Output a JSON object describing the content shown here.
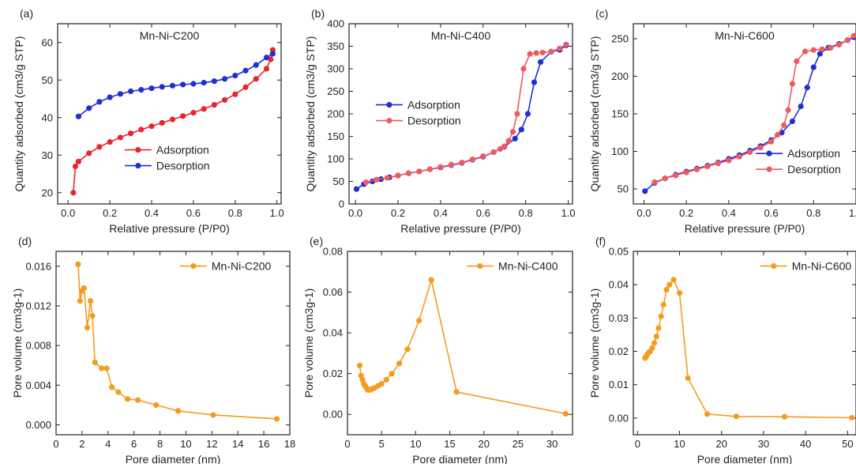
{
  "chart_data": [
    {
      "id": "a",
      "panel_label": "(a)",
      "type": "line",
      "title": "Mn-Ni-C200",
      "xlabel": "Relative pressure (P/P0)",
      "ylabel": "Quantity adsorbed (cm3/g STP)",
      "xlim": [
        -0.05,
        1.02
      ],
      "ylim": [
        17,
        65
      ],
      "xticks": [
        0.0,
        0.2,
        0.4,
        0.6,
        0.8,
        1.0
      ],
      "xtick_labels": [
        "0.0",
        "0.2",
        "0.4",
        "0.6",
        "0.8",
        "1.0"
      ],
      "yticks": [
        20,
        30,
        40,
        50,
        60
      ],
      "ytick_labels": [
        "20",
        "30",
        "40",
        "50",
        "60"
      ],
      "legend": "center-right",
      "series": [
        {
          "name": "Adsorption",
          "color": "#e8262b",
          "x": [
            0.025,
            0.035,
            0.05,
            0.1,
            0.15,
            0.2,
            0.25,
            0.3,
            0.35,
            0.4,
            0.45,
            0.5,
            0.55,
            0.6,
            0.65,
            0.7,
            0.75,
            0.8,
            0.85,
            0.9,
            0.95,
            0.97,
            0.98
          ],
          "y": [
            20,
            27,
            28.3,
            30.5,
            32.2,
            33.5,
            34.7,
            35.8,
            36.8,
            37.7,
            38.6,
            39.5,
            40.4,
            41.3,
            42.3,
            43.4,
            44.7,
            46.2,
            48.1,
            50.3,
            53,
            55.5,
            58
          ]
        },
        {
          "name": "Desorption",
          "color": "#1f2fd4",
          "x": [
            0.98,
            0.95,
            0.9,
            0.85,
            0.8,
            0.75,
            0.7,
            0.65,
            0.6,
            0.55,
            0.5,
            0.45,
            0.4,
            0.35,
            0.3,
            0.25,
            0.2,
            0.15,
            0.1,
            0.05
          ],
          "y": [
            57,
            56,
            54,
            52.5,
            51.2,
            50.3,
            49.7,
            49.3,
            49,
            48.8,
            48.5,
            48.2,
            47.8,
            47.4,
            47,
            46.3,
            45.4,
            44.2,
            42.5,
            40.3
          ]
        }
      ]
    },
    {
      "id": "b",
      "panel_label": "(b)",
      "type": "line",
      "title": "Mn-Ni-C400",
      "xlabel": "Relative pressure (P/P0)",
      "ylabel": "Quantity adsorbed (cm3/g STP)",
      "xlim": [
        -0.03,
        1.02
      ],
      "ylim": [
        0,
        400
      ],
      "xticks": [
        0.0,
        0.2,
        0.4,
        0.6,
        0.8,
        1.0
      ],
      "xtick_labels": [
        "0.0",
        "0.2",
        "0.4",
        "0.6",
        "0.8",
        "1.0"
      ],
      "yticks": [
        0,
        50,
        100,
        150,
        200,
        250,
        300,
        350,
        400
      ],
      "ytick_labels": [
        "0",
        "50",
        "100",
        "150",
        "200",
        "250",
        "300",
        "350",
        "400"
      ],
      "legend": "center-left",
      "series": [
        {
          "name": "Adsorption",
          "color": "#1f2fd4",
          "x": [
            0.005,
            0.04,
            0.08,
            0.12,
            0.16,
            0.2,
            0.25,
            0.3,
            0.35,
            0.4,
            0.45,
            0.5,
            0.55,
            0.6,
            0.65,
            0.7,
            0.75,
            0.78,
            0.81,
            0.84,
            0.87,
            0.92,
            0.96,
            0.99
          ],
          "y": [
            33,
            44,
            50,
            55,
            59,
            63,
            68,
            72,
            77,
            81,
            86,
            91,
            98,
            105,
            115,
            127,
            145,
            165,
            200,
            270,
            315,
            338,
            342,
            352
          ]
        },
        {
          "name": "Desorption",
          "color": "#ef5a5f",
          "x": [
            0.99,
            0.96,
            0.92,
            0.88,
            0.85,
            0.82,
            0.79,
            0.76,
            0.74,
            0.72,
            0.7,
            0.68,
            0.65,
            0.6,
            0.55,
            0.5,
            0.45,
            0.4,
            0.35,
            0.3,
            0.25,
            0.2,
            0.15,
            0.1,
            0.05
          ],
          "y": [
            354,
            345,
            338,
            336,
            335,
            333,
            300,
            200,
            160,
            140,
            128,
            122,
            115,
            106,
            99,
            92,
            87,
            82,
            77,
            72,
            68,
            63,
            58,
            54,
            48
          ]
        }
      ]
    },
    {
      "id": "c",
      "panel_label": "(c)",
      "type": "line",
      "title": "Mn-Ni-C600",
      "xlabel": "Relative pressure (P/P0)",
      "ylabel": "Quantity adsorbed (cm3/g STP)",
      "xlim": [
        -0.05,
        1.0
      ],
      "ylim": [
        30,
        270
      ],
      "xticks": [
        0.0,
        0.2,
        0.4,
        0.6,
        0.8,
        1.0
      ],
      "xtick_labels": [
        "0.0",
        "0.2",
        "0.4",
        "0.6",
        "0.8",
        "1.0"
      ],
      "yticks": [
        50,
        100,
        150,
        200,
        250
      ],
      "ytick_labels": [
        "50",
        "100",
        "150",
        "200",
        "250"
      ],
      "legend": "center-right",
      "series": [
        {
          "name": "Adsorption",
          "color": "#1f2fd4",
          "x": [
            0.005,
            0.05,
            0.1,
            0.15,
            0.2,
            0.25,
            0.3,
            0.35,
            0.4,
            0.45,
            0.5,
            0.55,
            0.6,
            0.65,
            0.7,
            0.74,
            0.77,
            0.8,
            0.83,
            0.87,
            0.92,
            0.96,
            0.99
          ],
          "y": [
            47,
            58,
            64,
            69,
            73,
            77,
            81,
            85,
            90,
            95,
            101,
            107,
            115,
            125,
            140,
            160,
            185,
            212,
            230,
            238,
            243,
            248,
            252
          ]
        },
        {
          "name": "Desorption",
          "color": "#ef5a5f",
          "x": [
            0.99,
            0.96,
            0.92,
            0.88,
            0.84,
            0.8,
            0.76,
            0.72,
            0.7,
            0.68,
            0.66,
            0.63,
            0.6,
            0.55,
            0.5,
            0.45,
            0.4,
            0.35,
            0.3,
            0.25,
            0.2,
            0.15,
            0.1,
            0.05
          ],
          "y": [
            254,
            248,
            242,
            238,
            236,
            235,
            233,
            220,
            190,
            155,
            135,
            122,
            113,
            105,
            99,
            93,
            88,
            84,
            80,
            76,
            72,
            68,
            64,
            59
          ]
        }
      ]
    },
    {
      "id": "d",
      "panel_label": "(d)",
      "type": "line",
      "title": "",
      "xlabel": "Pore diameter (nm)",
      "ylabel": "Pore volume (cm3g-1)",
      "xlim": [
        0,
        18
      ],
      "ylim": [
        -0.001,
        0.0175
      ],
      "xticks": [
        0,
        2,
        4,
        6,
        8,
        10,
        12,
        14,
        16,
        18
      ],
      "xtick_labels": [
        "0",
        "2",
        "4",
        "6",
        "8",
        "10",
        "12",
        "14",
        "16",
        "18"
      ],
      "yticks": [
        0.0,
        0.004,
        0.008,
        0.012,
        0.016
      ],
      "ytick_labels": [
        "0.000",
        "0.004",
        "0.008",
        "0.012",
        "0.016"
      ],
      "legend": "top-right",
      "series": [
        {
          "name": "Mn-Ni-C200",
          "color": "#f39c1f",
          "x": [
            1.7,
            1.85,
            2.0,
            2.15,
            2.4,
            2.65,
            2.8,
            3.0,
            3.5,
            3.9,
            4.3,
            4.8,
            5.5,
            6.3,
            7.7,
            9.4,
            12.1,
            17.0
          ],
          "y": [
            0.0162,
            0.0125,
            0.0135,
            0.0138,
            0.0098,
            0.0125,
            0.011,
            0.0063,
            0.0057,
            0.0057,
            0.0038,
            0.0033,
            0.0026,
            0.0025,
            0.002,
            0.0014,
            0.001,
            0.0006
          ]
        }
      ]
    },
    {
      "id": "e",
      "panel_label": "(e)",
      "type": "line",
      "title": "",
      "xlabel": "Pore diameter (nm)",
      "ylabel": "Pore volume (cm3g-1)",
      "xlim": [
        0,
        33
      ],
      "ylim": [
        -0.01,
        0.08
      ],
      "xticks": [
        0,
        5,
        10,
        15,
        20,
        25,
        30
      ],
      "xtick_labels": [
        "0",
        "5",
        "10",
        "15",
        "20",
        "25",
        "30"
      ],
      "yticks": [
        0.0,
        0.02,
        0.04,
        0.06,
        0.08
      ],
      "ytick_labels": [
        "0.00",
        "0.02",
        "0.04",
        "0.06",
        "0.08"
      ],
      "legend": "top-right",
      "series": [
        {
          "name": "Mn-Ni-C400",
          "color": "#f39c1f",
          "x": [
            1.8,
            2.0,
            2.2,
            2.4,
            2.6,
            2.8,
            3.0,
            3.3,
            3.6,
            4.0,
            4.5,
            5.0,
            5.7,
            6.5,
            7.6,
            8.8,
            10.5,
            12.3,
            16.0,
            32.0
          ],
          "y": [
            0.024,
            0.019,
            0.017,
            0.015,
            0.014,
            0.013,
            0.012,
            0.012,
            0.0125,
            0.013,
            0.014,
            0.015,
            0.017,
            0.02,
            0.025,
            0.032,
            0.046,
            0.066,
            0.011,
            0.0003
          ]
        }
      ]
    },
    {
      "id": "f",
      "panel_label": "(f)",
      "type": "line",
      "title": "",
      "xlabel": "Pore diameter (nm)",
      "ylabel": "Pore volume (cm3g-1)",
      "xlim": [
        -1,
        52
      ],
      "ylim": [
        -0.005,
        0.05
      ],
      "xticks": [
        0,
        10,
        20,
        30,
        40,
        50
      ],
      "xtick_labels": [
        "0",
        "10",
        "20",
        "30",
        "40",
        "50"
      ],
      "yticks": [
        0.0,
        0.01,
        0.02,
        0.03,
        0.04,
        0.05
      ],
      "ytick_labels": [
        "0.00",
        "0.01",
        "0.02",
        "0.03",
        "0.04",
        "0.05"
      ],
      "legend": "top-right",
      "series": [
        {
          "name": "Mn-Ni-C600",
          "color": "#f39c1f",
          "x": [
            1.8,
            2.0,
            2.3,
            2.6,
            3.0,
            3.5,
            4.0,
            4.5,
            5.0,
            5.6,
            6.2,
            6.9,
            7.6,
            8.6,
            10.0,
            12.0,
            16.6,
            23.5,
            35.0,
            51.0
          ],
          "y": [
            0.018,
            0.0185,
            0.019,
            0.0195,
            0.02,
            0.021,
            0.0225,
            0.0245,
            0.027,
            0.0305,
            0.034,
            0.0385,
            0.04,
            0.0415,
            0.0375,
            0.012,
            0.0012,
            0.0005,
            0.0004,
            0.0001
          ]
        }
      ]
    }
  ]
}
